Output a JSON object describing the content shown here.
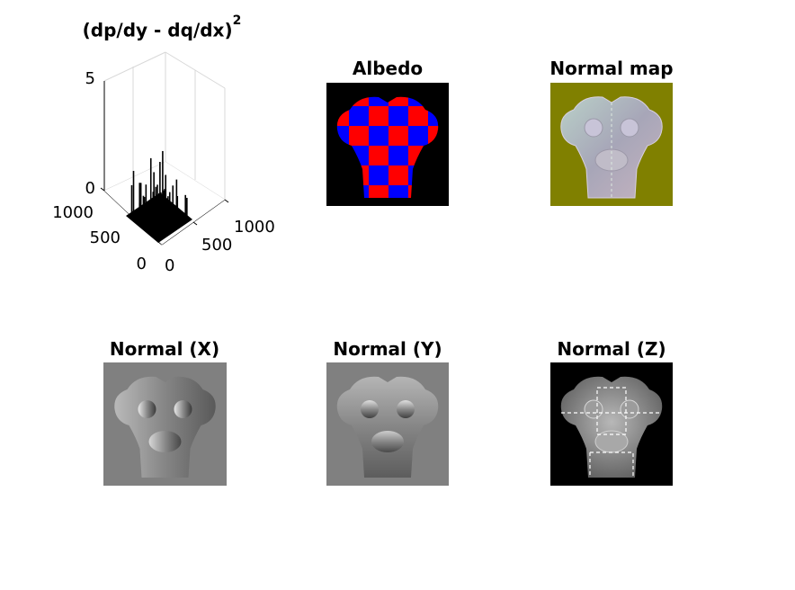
{
  "chart_data": {
    "type": "surface",
    "title": "(dp/dy - dq/dx)",
    "title_exponent": "2",
    "z_ticks": [
      "0",
      "5"
    ],
    "x_ticks": [
      "0",
      "500",
      "1000"
    ],
    "y_ticks": [
      "0",
      "500",
      "1000"
    ],
    "zlim": [
      0,
      5
    ],
    "xlim": [
      0,
      1000
    ],
    "ylim": [
      0,
      1000
    ],
    "grid": true,
    "series_color": "#000000"
  },
  "panels": {
    "albedo": {
      "title": "Albedo",
      "colors": [
        "#ff0000",
        "#0000ff",
        "#000000"
      ]
    },
    "normal_map": {
      "title": "Normal map",
      "background": "#808000"
    },
    "normal_x": {
      "title": "Normal (X)",
      "background": "#808080"
    },
    "normal_y": {
      "title": "Normal (Y)",
      "background": "#808080"
    },
    "normal_z": {
      "title": "Normal (Z)",
      "background": "#000000"
    }
  }
}
